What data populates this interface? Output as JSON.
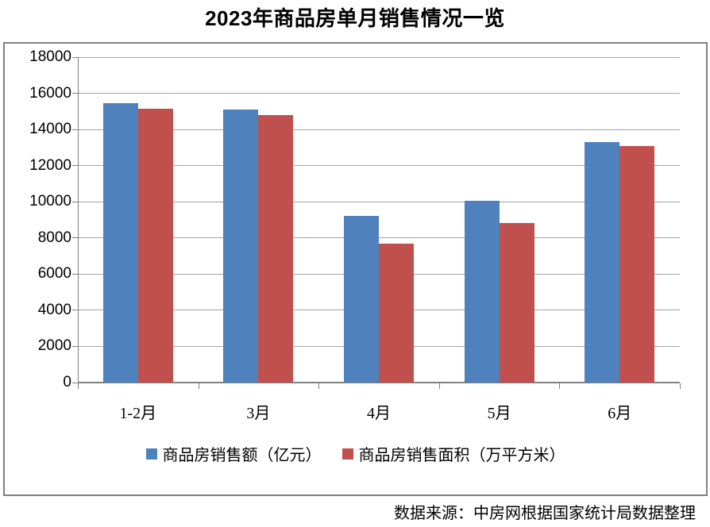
{
  "title": "2023年商品房单月销售情况一览",
  "source_note": "数据来源：中房网根据国家统计局数据整理",
  "colors": {
    "series_blue": "#4f81bd",
    "series_red": "#c0504d",
    "gridline": "#a3a3a3",
    "axis": "#808080",
    "frame_border": "#7f7f7f",
    "text": "#000000"
  },
  "chart_data": {
    "type": "bar",
    "title": "2023年商品房单月销售情况一览",
    "categories": [
      "1-2月",
      "3月",
      "4月",
      "5月",
      "6月"
    ],
    "series": [
      {
        "name": "商品房销售额（亿元）",
        "color": "#4f81bd",
        "values": [
          15449,
          15096,
          9205,
          10037,
          13305
        ]
      },
      {
        "name": "商品房销售面积（万平方米）",
        "color": "#c0504d",
        "values": [
          15133,
          14813,
          7690,
          8804,
          13075
        ]
      }
    ],
    "xlabel": "",
    "ylabel": "",
    "ylim": [
      0,
      18000
    ],
    "ytick_step": 2000,
    "grid": true,
    "legend_position": "bottom"
  }
}
